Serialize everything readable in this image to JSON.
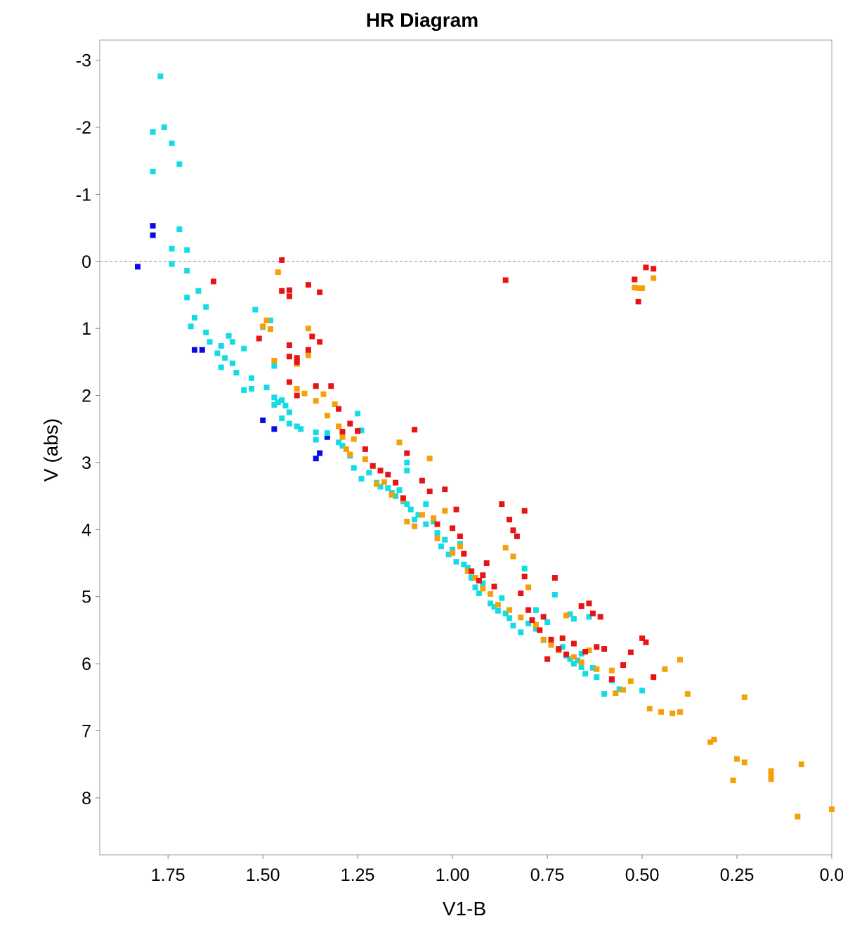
{
  "chart_data": {
    "type": "scatter",
    "title": "HR Diagram",
    "xlabel": "V1-B",
    "ylabel": "V (abs)",
    "xlim": [
      1.93,
      0.0
    ],
    "ylim": [
      -3.3,
      8.85
    ],
    "x_reversed": true,
    "y_reversed": true,
    "grid": false,
    "reference_line": {
      "y": 0,
      "style": "dashed",
      "color": "#7a86c0"
    },
    "xticks": [
      1.75,
      1.5,
      1.25,
      1.0,
      0.75,
      0.5,
      0.25,
      0.0
    ],
    "xtick_labels": [
      "1.75",
      "1.50",
      "1.25",
      "1.00",
      "0.75",
      "0.50",
      "0.25",
      "0.0"
    ],
    "yticks": [
      -3,
      -2,
      -1,
      0,
      1,
      2,
      3,
      4,
      5,
      6,
      7,
      8
    ],
    "ytick_labels": [
      "-3",
      "-2",
      "-1",
      "0",
      "1",
      "2",
      "3",
      "4",
      "5",
      "6",
      "7",
      "8"
    ],
    "series": [
      {
        "name": "blue",
        "color": "#0a0ae6",
        "points": [
          [
            1.83,
            0.08
          ],
          [
            1.79,
            -0.39
          ],
          [
            1.79,
            -0.53
          ],
          [
            1.68,
            1.32
          ],
          [
            1.66,
            1.32
          ],
          [
            1.5,
            2.37
          ],
          [
            1.47,
            2.5
          ],
          [
            1.36,
            2.94
          ],
          [
            1.35,
            2.86
          ],
          [
            1.33,
            2.62
          ]
        ]
      },
      {
        "name": "cyan",
        "color": "#14dce6",
        "points": [
          [
            1.77,
            -2.76
          ],
          [
            1.79,
            -1.93
          ],
          [
            1.76,
            -2.0
          ],
          [
            1.74,
            -1.76
          ],
          [
            1.72,
            -1.45
          ],
          [
            1.79,
            -1.34
          ],
          [
            1.72,
            -0.48
          ],
          [
            1.74,
            -0.19
          ],
          [
            1.7,
            -0.17
          ],
          [
            1.74,
            0.04
          ],
          [
            1.7,
            0.14
          ],
          [
            1.7,
            0.54
          ],
          [
            1.67,
            0.44
          ],
          [
            1.65,
            0.68
          ],
          [
            1.68,
            0.84
          ],
          [
            1.69,
            0.97
          ],
          [
            1.65,
            1.06
          ],
          [
            1.64,
            1.2
          ],
          [
            1.62,
            1.37
          ],
          [
            1.61,
            1.26
          ],
          [
            1.6,
            1.44
          ],
          [
            1.61,
            1.58
          ],
          [
            1.58,
            1.52
          ],
          [
            1.57,
            1.66
          ],
          [
            1.59,
            1.11
          ],
          [
            1.58,
            1.2
          ],
          [
            1.55,
            1.3
          ],
          [
            1.53,
            1.74
          ],
          [
            1.53,
            1.9
          ],
          [
            1.55,
            1.92
          ],
          [
            1.52,
            0.72
          ],
          [
            1.5,
            0.98
          ],
          [
            1.48,
            0.88
          ],
          [
            1.47,
            1.56
          ],
          [
            1.49,
            1.88
          ],
          [
            1.47,
            2.03
          ],
          [
            1.45,
            2.07
          ],
          [
            1.46,
            2.1
          ],
          [
            1.44,
            2.15
          ],
          [
            1.43,
            2.25
          ],
          [
            1.47,
            2.14
          ],
          [
            1.45,
            2.34
          ],
          [
            1.43,
            2.42
          ],
          [
            1.41,
            2.46
          ],
          [
            1.4,
            2.5
          ],
          [
            1.36,
            2.55
          ],
          [
            1.36,
            2.66
          ],
          [
            1.33,
            2.56
          ],
          [
            1.3,
            2.7
          ],
          [
            1.29,
            2.75
          ],
          [
            1.27,
            2.9
          ],
          [
            1.26,
            3.08
          ],
          [
            1.25,
            2.27
          ],
          [
            1.24,
            2.52
          ],
          [
            1.24,
            3.24
          ],
          [
            1.22,
            3.15
          ],
          [
            1.2,
            3.3
          ],
          [
            1.19,
            3.36
          ],
          [
            1.17,
            3.38
          ],
          [
            1.16,
            3.45
          ],
          [
            1.15,
            3.5
          ],
          [
            1.14,
            3.41
          ],
          [
            1.13,
            3.58
          ],
          [
            1.12,
            3.62
          ],
          [
            1.11,
            3.7
          ],
          [
            1.1,
            3.85
          ],
          [
            1.12,
            3.0
          ],
          [
            1.12,
            3.12
          ],
          [
            1.09,
            3.78
          ],
          [
            1.07,
            3.62
          ],
          [
            1.07,
            3.92
          ],
          [
            1.05,
            3.88
          ],
          [
            1.04,
            4.05
          ],
          [
            1.03,
            4.25
          ],
          [
            1.02,
            4.15
          ],
          [
            1.01,
            4.37
          ],
          [
            1.0,
            4.3
          ],
          [
            0.99,
            4.48
          ],
          [
            0.98,
            4.21
          ],
          [
            0.97,
            4.52
          ],
          [
            0.96,
            4.57
          ],
          [
            0.95,
            4.72
          ],
          [
            0.94,
            4.86
          ],
          [
            0.93,
            4.95
          ],
          [
            0.92,
            4.8
          ],
          [
            0.9,
            5.1
          ],
          [
            0.89,
            5.15
          ],
          [
            0.88,
            5.21
          ],
          [
            0.87,
            5.02
          ],
          [
            0.86,
            5.25
          ],
          [
            0.85,
            5.32
          ],
          [
            0.84,
            5.43
          ],
          [
            0.82,
            5.53
          ],
          [
            0.81,
            4.58
          ],
          [
            0.8,
            5.4
          ],
          [
            0.78,
            5.48
          ],
          [
            0.76,
            5.65
          ],
          [
            0.75,
            5.38
          ],
          [
            0.74,
            5.7
          ],
          [
            0.73,
            4.97
          ],
          [
            0.72,
            5.8
          ],
          [
            0.71,
            5.75
          ],
          [
            0.7,
            5.88
          ],
          [
            0.69,
            5.93
          ],
          [
            0.68,
            6.0
          ],
          [
            0.67,
            5.95
          ],
          [
            0.66,
            5.85
          ],
          [
            0.65,
            6.15
          ],
          [
            0.64,
            5.3
          ],
          [
            0.63,
            6.06
          ],
          [
            0.62,
            6.2
          ],
          [
            0.6,
            6.45
          ],
          [
            0.58,
            6.25
          ],
          [
            0.56,
            6.38
          ],
          [
            0.5,
            6.4
          ],
          [
            0.69,
            5.26
          ],
          [
            0.68,
            5.33
          ],
          [
            0.66,
            6.05
          ],
          [
            0.78,
            5.2
          ],
          [
            0.95,
            4.63
          ]
        ]
      },
      {
        "name": "orange",
        "color": "#f5a00a",
        "points": [
          [
            1.46,
            0.16
          ],
          [
            1.5,
            0.97
          ],
          [
            1.48,
            1.01
          ],
          [
            1.49,
            0.88
          ],
          [
            1.47,
            1.48
          ],
          [
            1.38,
            1.0
          ],
          [
            1.38,
            1.4
          ],
          [
            1.41,
            1.53
          ],
          [
            1.41,
            1.9
          ],
          [
            1.39,
            1.97
          ],
          [
            1.36,
            2.08
          ],
          [
            1.34,
            1.98
          ],
          [
            1.33,
            2.3
          ],
          [
            1.31,
            2.13
          ],
          [
            1.3,
            2.46
          ],
          [
            1.29,
            2.62
          ],
          [
            1.28,
            2.8
          ],
          [
            1.27,
            2.88
          ],
          [
            1.26,
            2.65
          ],
          [
            1.23,
            2.95
          ],
          [
            1.21,
            3.05
          ],
          [
            1.2,
            3.32
          ],
          [
            1.18,
            3.29
          ],
          [
            1.16,
            3.48
          ],
          [
            1.14,
            2.7
          ],
          [
            1.13,
            3.55
          ],
          [
            1.12,
            3.88
          ],
          [
            1.1,
            3.95
          ],
          [
            1.08,
            3.78
          ],
          [
            1.06,
            2.94
          ],
          [
            1.05,
            3.83
          ],
          [
            1.04,
            4.13
          ],
          [
            1.02,
            3.72
          ],
          [
            1.0,
            4.35
          ],
          [
            0.98,
            4.25
          ],
          [
            0.96,
            4.62
          ],
          [
            0.94,
            4.72
          ],
          [
            0.92,
            4.88
          ],
          [
            0.9,
            4.96
          ],
          [
            0.88,
            5.12
          ],
          [
            0.86,
            4.27
          ],
          [
            0.85,
            5.2
          ],
          [
            0.84,
            4.4
          ],
          [
            0.82,
            5.31
          ],
          [
            0.8,
            4.86
          ],
          [
            0.78,
            5.42
          ],
          [
            0.76,
            5.64
          ],
          [
            0.74,
            5.72
          ],
          [
            0.72,
            5.8
          ],
          [
            0.7,
            5.28
          ],
          [
            0.68,
            5.9
          ],
          [
            0.66,
            5.98
          ],
          [
            0.64,
            5.8
          ],
          [
            0.62,
            6.08
          ],
          [
            0.58,
            6.1
          ],
          [
            0.57,
            6.44
          ],
          [
            0.55,
            6.39
          ],
          [
            0.53,
            6.26
          ],
          [
            0.52,
            0.39
          ],
          [
            0.51,
            0.4
          ],
          [
            0.5,
            0.4
          ],
          [
            0.47,
            0.25
          ],
          [
            0.48,
            6.67
          ],
          [
            0.45,
            6.72
          ],
          [
            0.44,
            6.08
          ],
          [
            0.42,
            6.74
          ],
          [
            0.4,
            6.72
          ],
          [
            0.4,
            5.94
          ],
          [
            0.38,
            6.45
          ],
          [
            0.32,
            7.17
          ],
          [
            0.31,
            7.13
          ],
          [
            0.26,
            7.74
          ],
          [
            0.25,
            7.42
          ],
          [
            0.23,
            7.47
          ],
          [
            0.23,
            6.5
          ],
          [
            0.16,
            7.6
          ],
          [
            0.16,
            7.72
          ],
          [
            0.16,
            7.65
          ],
          [
            0.09,
            8.28
          ],
          [
            0.08,
            7.5
          ],
          [
            0.0,
            8.17
          ]
        ]
      },
      {
        "name": "red",
        "color": "#e61414",
        "points": [
          [
            1.63,
            0.3
          ],
          [
            1.45,
            -0.02
          ],
          [
            1.45,
            0.44
          ],
          [
            1.43,
            0.43
          ],
          [
            1.43,
            0.52
          ],
          [
            1.38,
            0.35
          ],
          [
            1.35,
            0.46
          ],
          [
            1.51,
            1.15
          ],
          [
            1.43,
            1.25
          ],
          [
            1.43,
            1.42
          ],
          [
            1.41,
            1.44
          ],
          [
            1.41,
            1.5
          ],
          [
            1.37,
            1.12
          ],
          [
            1.35,
            1.2
          ],
          [
            1.38,
            1.32
          ],
          [
            1.43,
            1.8
          ],
          [
            1.41,
            2.0
          ],
          [
            1.36,
            1.86
          ],
          [
            1.32,
            1.86
          ],
          [
            1.3,
            2.2
          ],
          [
            1.29,
            2.54
          ],
          [
            1.27,
            2.42
          ],
          [
            1.25,
            2.53
          ],
          [
            1.23,
            2.8
          ],
          [
            1.21,
            3.05
          ],
          [
            1.19,
            3.12
          ],
          [
            1.17,
            3.18
          ],
          [
            1.15,
            3.3
          ],
          [
            1.13,
            3.53
          ],
          [
            1.12,
            2.86
          ],
          [
            1.1,
            2.51
          ],
          [
            1.08,
            3.27
          ],
          [
            1.06,
            3.43
          ],
          [
            1.04,
            3.92
          ],
          [
            1.02,
            3.4
          ],
          [
            1.0,
            3.98
          ],
          [
            0.99,
            3.7
          ],
          [
            0.98,
            4.1
          ],
          [
            0.97,
            4.36
          ],
          [
            0.95,
            4.62
          ],
          [
            0.93,
            4.76
          ],
          [
            0.92,
            4.68
          ],
          [
            0.91,
            4.5
          ],
          [
            0.89,
            4.85
          ],
          [
            0.87,
            3.62
          ],
          [
            0.86,
            0.28
          ],
          [
            0.85,
            3.85
          ],
          [
            0.84,
            4.01
          ],
          [
            0.83,
            4.1
          ],
          [
            0.82,
            4.95
          ],
          [
            0.81,
            3.72
          ],
          [
            0.8,
            5.2
          ],
          [
            0.79,
            5.35
          ],
          [
            0.77,
            5.5
          ],
          [
            0.76,
            5.3
          ],
          [
            0.74,
            5.64
          ],
          [
            0.73,
            4.72
          ],
          [
            0.72,
            5.78
          ],
          [
            0.71,
            5.62
          ],
          [
            0.7,
            5.86
          ],
          [
            0.68,
            5.7
          ],
          [
            0.66,
            5.14
          ],
          [
            0.65,
            5.82
          ],
          [
            0.64,
            5.1
          ],
          [
            0.63,
            5.25
          ],
          [
            0.62,
            5.75
          ],
          [
            0.61,
            5.3
          ],
          [
            0.6,
            5.78
          ],
          [
            0.58,
            6.23
          ],
          [
            0.55,
            6.02
          ],
          [
            0.52,
            0.27
          ],
          [
            0.51,
            0.6
          ],
          [
            0.5,
            5.62
          ],
          [
            0.49,
            5.68
          ],
          [
            0.49,
            0.09
          ],
          [
            0.47,
            0.11
          ],
          [
            0.47,
            6.2
          ],
          [
            0.53,
            5.83
          ],
          [
            0.75,
            5.93
          ],
          [
            0.81,
            4.7
          ]
        ]
      }
    ]
  }
}
